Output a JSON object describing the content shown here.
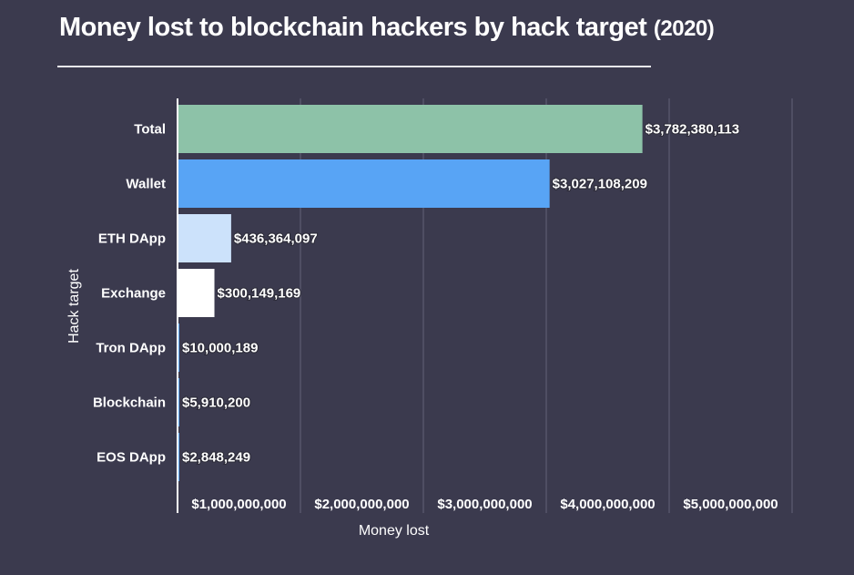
{
  "chart_data": {
    "type": "bar",
    "orientation": "horizontal",
    "title": "Money lost to blockchain hackers by hack target",
    "title_suffix": "(2020)",
    "xlabel": "Money lost",
    "ylabel": "Hack target",
    "xlim": [
      0,
      5000000000
    ],
    "grid": true,
    "x_ticks": [
      1000000000,
      2000000000,
      3000000000,
      4000000000,
      5000000000
    ],
    "x_tick_labels": [
      "$1,000,000,000",
      "$2,000,000,000",
      "$3,000,000,000",
      "$4,000,000,000",
      "$5,000,000,000"
    ],
    "categories": [
      "Total",
      "Wallet",
      "ETH DApp",
      "Exchange",
      "Tron DApp",
      "Blockchain",
      "EOS DApp"
    ],
    "values": [
      3782380113,
      3027108209,
      436364097,
      300149169,
      10000189,
      5910200,
      2848249
    ],
    "value_labels": [
      "$3,782,380,113",
      "$3,027,108,209",
      "$436,364,097",
      "$300,149,169",
      "$10,000,189",
      "$5,910,200",
      "$2,848,249"
    ],
    "colors": [
      "#8dc2a8",
      "#58a4f5",
      "#cce2fb",
      "#ffffff",
      "#58a4f5",
      "#58a4f5",
      "#58a4f5"
    ]
  },
  "theme": {
    "background": "#3b3a4e",
    "gridline": "#56556a",
    "axis": "#ffffff"
  }
}
